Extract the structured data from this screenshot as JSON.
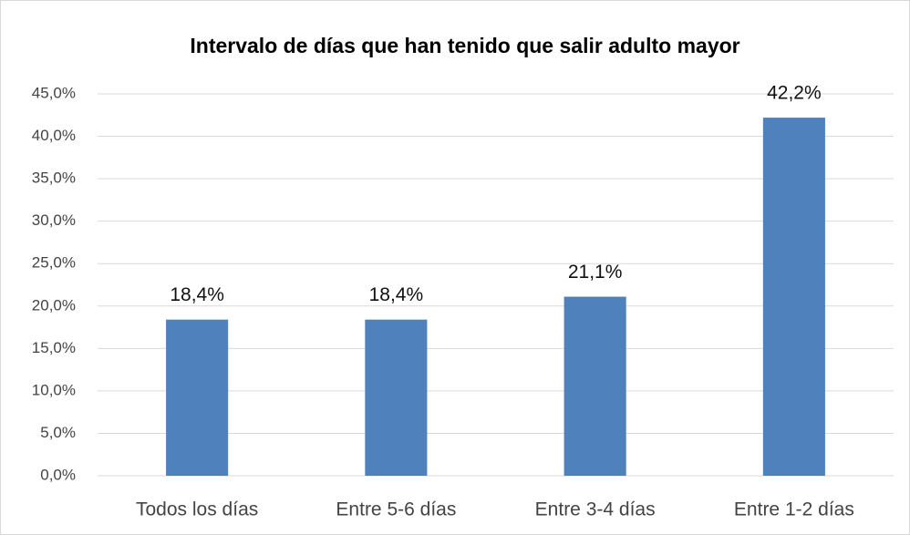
{
  "chart_data": {
    "type": "bar",
    "title": "Intervalo de días que han tenido que salir adulto mayor",
    "categories": [
      "Todos los días",
      "Entre 5-6 días",
      "Entre 3-4 días",
      "Entre 1-2 días"
    ],
    "values": [
      18.4,
      18.4,
      21.1,
      42.2
    ],
    "value_labels": [
      "18,4%",
      "18,4%",
      "21,1%",
      "42,2%"
    ],
    "color": "#4f81bd",
    "ylim": [
      0,
      45
    ],
    "yticks": [
      {
        "value": 0,
        "label": "0,0%"
      },
      {
        "value": 5,
        "label": "5,0%"
      },
      {
        "value": 10,
        "label": "10,0%"
      },
      {
        "value": 15,
        "label": "15,0%"
      },
      {
        "value": 20,
        "label": "20,0%"
      },
      {
        "value": 25,
        "label": "25,0%"
      },
      {
        "value": 30,
        "label": "30,0%"
      },
      {
        "value": 35,
        "label": "35,0%"
      },
      {
        "value": 40,
        "label": "40,0%"
      },
      {
        "value": 45,
        "label": "45,0%"
      }
    ],
    "grid": true
  }
}
